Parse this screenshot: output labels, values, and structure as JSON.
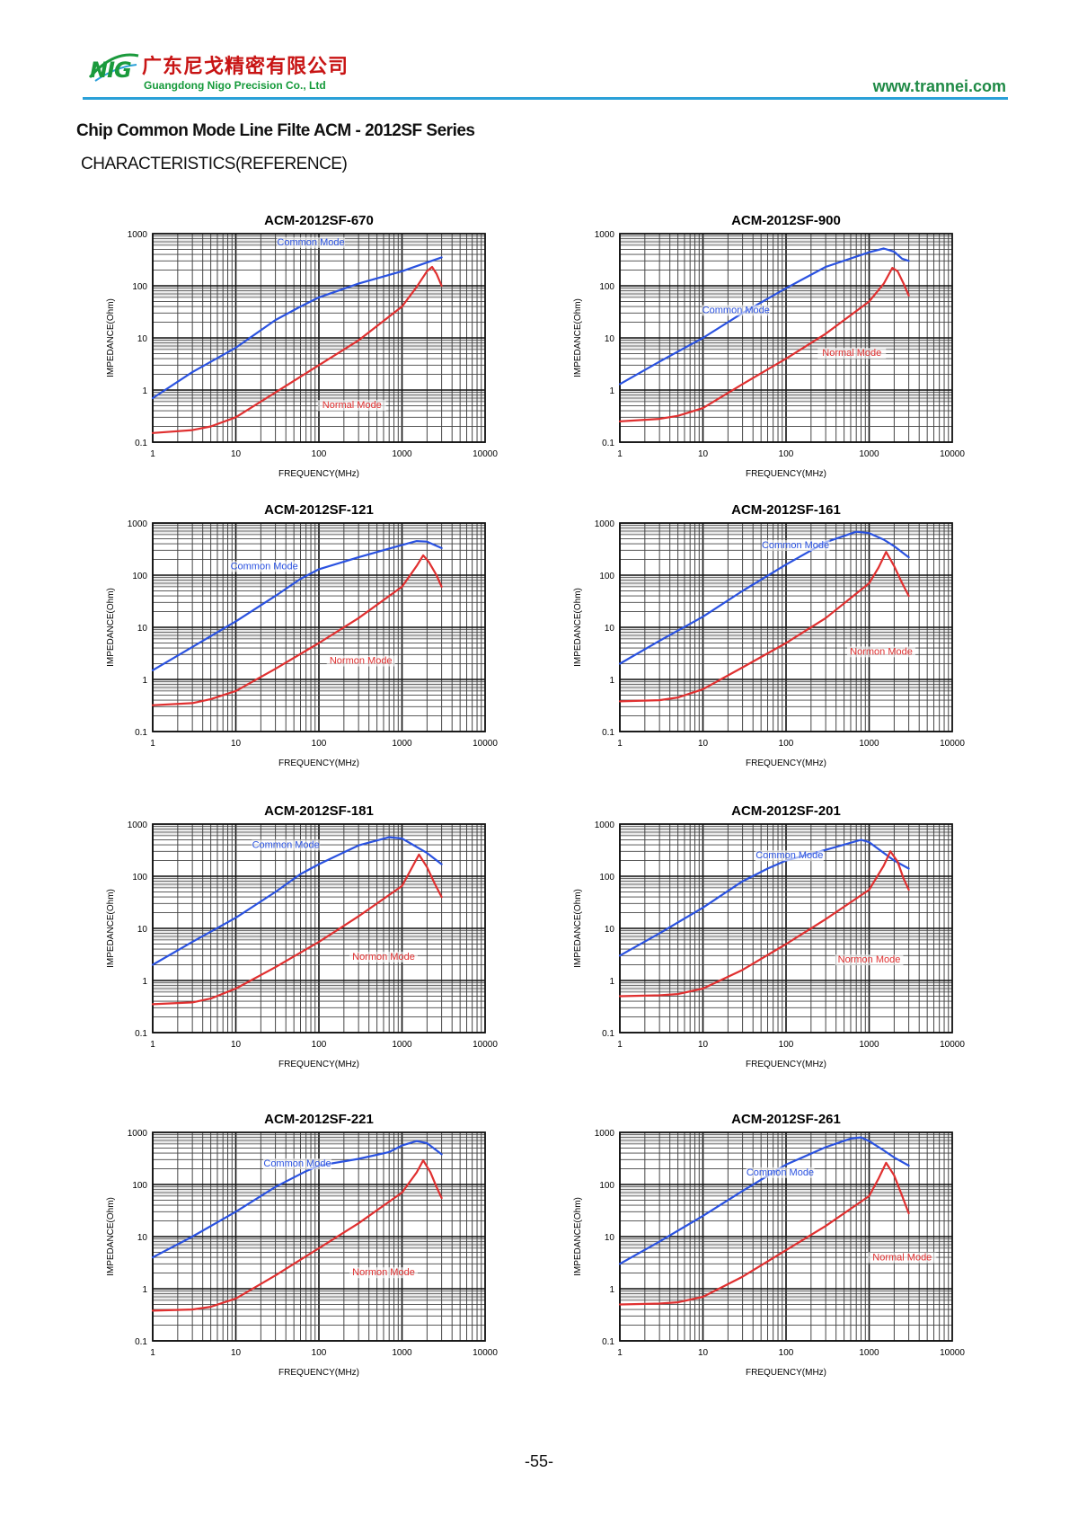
{
  "header": {
    "logo_text": "NIG",
    "company_cn": "广东尼戈精密有限公司",
    "company_en": "Guangdong Nigo Precision Co., Ltd",
    "website": "www.trannei.com",
    "colors": {
      "accent_rule": "#2aa0d8",
      "logo_green": "#1a9a3c",
      "company_red": "#c81414"
    }
  },
  "document": {
    "title": "Chip Common Mode Line Filte ACM - 2012SF Series",
    "subtitle": "CHARACTERISTICS(REFERENCE)",
    "page_number": "-55-"
  },
  "chart_data": [
    {
      "type": "line",
      "title": "ACM-2012SF-670",
      "xlabel": "FREQUENCY(MHz)",
      "ylabel": "IMPEDANCE(Ohm)",
      "xscale": "log",
      "yscale": "log",
      "xlim": [
        1,
        10000
      ],
      "ylim": [
        0.1,
        1000
      ],
      "xticks": [
        1,
        10,
        100,
        1000,
        10000
      ],
      "yticks": [
        0.1,
        1,
        10,
        100,
        1000
      ],
      "xtick_labels": [
        "1",
        "10",
        "100",
        "1000",
        "10000"
      ],
      "ytick_labels": [
        "0.1",
        "1",
        "10",
        "100",
        "1000"
      ],
      "grid": true,
      "series": [
        {
          "name": "Common Mode",
          "color": "#2a52e0",
          "x": [
            1,
            3,
            10,
            30,
            60,
            100,
            300,
            1000,
            2000,
            3000
          ],
          "y": [
            0.7,
            2.2,
            6.5,
            22,
            40,
            60,
            110,
            190,
            280,
            350
          ]
        },
        {
          "name": "Normal Mode",
          "color": "#e03030",
          "x": [
            1,
            3,
            5,
            10,
            30,
            100,
            300,
            1000,
            1500,
            2000,
            2300,
            2600,
            3000
          ],
          "y": [
            0.15,
            0.17,
            0.2,
            0.3,
            0.9,
            3,
            9,
            40,
            95,
            190,
            230,
            170,
            100
          ]
        }
      ],
      "annotations": [
        {
          "text": "Common Mode",
          "x": 80,
          "y": 600,
          "color": "#2a52e0"
        },
        {
          "text": "Normal Mode",
          "x": 250,
          "y": 0.45,
          "color": "#e03030"
        }
      ]
    },
    {
      "type": "line",
      "title": "ACM-2012SF-900",
      "xlabel": "FREQUENCY(MHz)",
      "ylabel": "IMPEDANCE(Ohm)",
      "xscale": "log",
      "yscale": "log",
      "xlim": [
        1,
        10000
      ],
      "ylim": [
        0.1,
        1000
      ],
      "xticks": [
        1,
        10,
        100,
        1000,
        10000
      ],
      "yticks": [
        0.1,
        1,
        10,
        100,
        1000
      ],
      "xtick_labels": [
        "1",
        "10",
        "100",
        "1000",
        "10000"
      ],
      "ytick_labels": [
        "0.1",
        "1",
        "10",
        "100",
        "1000"
      ],
      "grid": true,
      "series": [
        {
          "name": "Common Mode",
          "color": "#2a52e0",
          "x": [
            1,
            3,
            10,
            30,
            100,
            300,
            1000,
            1500,
            2000,
            2500,
            3000
          ],
          "y": [
            1.3,
            3.5,
            10,
            30,
            90,
            230,
            440,
            520,
            450,
            330,
            300
          ]
        },
        {
          "name": "Normal Mode",
          "color": "#e03030",
          "x": [
            1,
            3,
            5,
            10,
            30,
            100,
            300,
            1000,
            1500,
            1900,
            2200,
            2600,
            3000
          ],
          "y": [
            0.25,
            0.28,
            0.32,
            0.45,
            1.3,
            4,
            12,
            50,
            110,
            220,
            190,
            110,
            65
          ]
        }
      ],
      "annotations": [
        {
          "text": "Common Mode",
          "x": 25,
          "y": 30,
          "color": "#2a52e0"
        },
        {
          "text": "Normal Mode",
          "x": 620,
          "y": 4.5,
          "color": "#e03030"
        }
      ]
    },
    {
      "type": "line",
      "title": "ACM-2012SF-121",
      "xlabel": "FREQUENCY(MHz)",
      "ylabel": "IMPEDANCE(Ohm)",
      "xscale": "log",
      "yscale": "log",
      "xlim": [
        1,
        10000
      ],
      "ylim": [
        0.1,
        1000
      ],
      "xticks": [
        1,
        10,
        100,
        1000,
        10000
      ],
      "yticks": [
        0.1,
        1,
        10,
        100,
        1000
      ],
      "xtick_labels": [
        "1",
        "10",
        "100",
        "1000",
        "10000"
      ],
      "ytick_labels": [
        "0.1",
        "1",
        "10",
        "100",
        "1000"
      ],
      "grid": true,
      "series": [
        {
          "name": "Common Mode",
          "color": "#2a52e0",
          "x": [
            1,
            3,
            10,
            30,
            60,
            100,
            300,
            1000,
            1500,
            2000,
            3000
          ],
          "y": [
            1.5,
            4.2,
            13,
            40,
            85,
            130,
            220,
            380,
            450,
            440,
            330
          ]
        },
        {
          "name": "Normal Mode",
          "color": "#e03030",
          "x": [
            1,
            3,
            5,
            10,
            30,
            100,
            300,
            1000,
            1500,
            1800,
            2100,
            2600,
            3000
          ],
          "y": [
            0.32,
            0.35,
            0.42,
            0.6,
            1.6,
            5,
            15,
            60,
            150,
            240,
            180,
            100,
            60
          ]
        }
      ],
      "annotations": [
        {
          "text": "Common Mode",
          "x": 22,
          "y": 130,
          "color": "#2a52e0"
        },
        {
          "text": "Normon Mode",
          "x": 320,
          "y": 2,
          "color": "#e03030"
        }
      ]
    },
    {
      "type": "line",
      "title": "ACM-2012SF-161",
      "xlabel": "FREQUENCY(MHz)",
      "ylabel": "IMPEDANCE(Ohm)",
      "xscale": "log",
      "yscale": "log",
      "xlim": [
        1,
        10000
      ],
      "ylim": [
        0.1,
        1000
      ],
      "xticks": [
        1,
        10,
        100,
        1000,
        10000
      ],
      "yticks": [
        0.1,
        1,
        10,
        100,
        1000
      ],
      "xtick_labels": [
        "1",
        "10",
        "100",
        "1000",
        "10000"
      ],
      "ytick_labels": [
        "0.1",
        "1",
        "10",
        "100",
        "1000"
      ],
      "grid": true,
      "series": [
        {
          "name": "Common Mode",
          "color": "#2a52e0",
          "x": [
            1,
            3,
            10,
            30,
            100,
            300,
            700,
            1000,
            1500,
            2000,
            3000
          ],
          "y": [
            2,
            5.5,
            16,
            50,
            160,
            430,
            680,
            640,
            480,
            360,
            220
          ]
        },
        {
          "name": "Normal Mode",
          "color": "#e03030",
          "x": [
            1,
            3,
            5,
            10,
            30,
            100,
            300,
            1000,
            1300,
            1600,
            2000,
            2500,
            3000
          ],
          "y": [
            0.38,
            0.4,
            0.45,
            0.65,
            1.7,
            5,
            15,
            70,
            140,
            280,
            150,
            70,
            40
          ]
        }
      ],
      "annotations": [
        {
          "text": "Common Mode",
          "x": 130,
          "y": 330,
          "color": "#2a52e0"
        },
        {
          "text": "Normon Mode",
          "x": 1400,
          "y": 3,
          "color": "#e03030"
        }
      ]
    },
    {
      "type": "line",
      "title": "ACM-2012SF-181",
      "xlabel": "FREQUENCY(MHz)",
      "ylabel": "IMPEDANCE(Ohm)",
      "xscale": "log",
      "yscale": "log",
      "xlim": [
        1,
        10000
      ],
      "ylim": [
        0.1,
        1000
      ],
      "xticks": [
        1,
        10,
        100,
        1000,
        10000
      ],
      "yticks": [
        0.1,
        1,
        10,
        100,
        1000
      ],
      "xtick_labels": [
        "1",
        "10",
        "100",
        "1000",
        "10000"
      ],
      "ytick_labels": [
        "0.1",
        "1",
        "10",
        "100",
        "1000"
      ],
      "grid": true,
      "series": [
        {
          "name": "Common Mode",
          "color": "#2a52e0",
          "x": [
            1,
            3,
            10,
            30,
            60,
            100,
            300,
            700,
            1000,
            2000,
            3000
          ],
          "y": [
            2,
            5.5,
            16,
            50,
            110,
            170,
            390,
            560,
            530,
            280,
            170
          ]
        },
        {
          "name": "Normal Mode",
          "color": "#e03030",
          "x": [
            1,
            3,
            5,
            10,
            30,
            100,
            300,
            1000,
            1300,
            1600,
            2000,
            2500,
            3000
          ],
          "y": [
            0.35,
            0.38,
            0.45,
            0.7,
            1.8,
            5.5,
            17,
            65,
            140,
            260,
            150,
            70,
            40
          ]
        }
      ],
      "annotations": [
        {
          "text": "Common Mode",
          "x": 40,
          "y": 350,
          "color": "#2a52e0"
        },
        {
          "text": "Normon Mode",
          "x": 600,
          "y": 2.5,
          "color": "#e03030"
        }
      ]
    },
    {
      "type": "line",
      "title": "ACM-2012SF-201",
      "xlabel": "FREQUENCY(MHz)",
      "ylabel": "IMPEDANCE(Ohm)",
      "xscale": "log",
      "yscale": "log",
      "xlim": [
        1,
        10000
      ],
      "ylim": [
        0.1,
        1000
      ],
      "xticks": [
        1,
        10,
        100,
        1000,
        10000
      ],
      "yticks": [
        0.1,
        1,
        10,
        100,
        1000
      ],
      "xtick_labels": [
        "1",
        "10",
        "100",
        "1000",
        "10000"
      ],
      "ytick_labels": [
        "0.1",
        "1",
        "10",
        "100",
        "1000"
      ],
      "grid": true,
      "series": [
        {
          "name": "Common Mode",
          "color": "#2a52e0",
          "x": [
            1,
            3,
            10,
            30,
            60,
            100,
            300,
            800,
            1000,
            1500,
            2000,
            3000
          ],
          "y": [
            3,
            8,
            25,
            80,
            140,
            200,
            320,
            500,
            450,
            280,
            200,
            140
          ]
        },
        {
          "name": "Normal Mode",
          "color": "#e03030",
          "x": [
            1,
            3,
            5,
            10,
            30,
            100,
            300,
            1000,
            1500,
            1800,
            2200,
            2600,
            3000
          ],
          "y": [
            0.5,
            0.52,
            0.55,
            0.7,
            1.6,
            5,
            15,
            55,
            160,
            300,
            190,
            90,
            55
          ]
        }
      ],
      "annotations": [
        {
          "text": "Common Mode",
          "x": 110,
          "y": 220,
          "color": "#2a52e0"
        },
        {
          "text": "Normon Mode",
          "x": 1000,
          "y": 2.2,
          "color": "#e03030"
        }
      ]
    },
    {
      "type": "line",
      "title": "ACM-2012SF-221",
      "xlabel": "FREQUENCY(MHz)",
      "ylabel": "IMPEDANCE(Ohm)",
      "xscale": "log",
      "yscale": "log",
      "xlim": [
        1,
        10000
      ],
      "ylim": [
        0.1,
        1000
      ],
      "xticks": [
        1,
        10,
        100,
        1000,
        10000
      ],
      "yticks": [
        0.1,
        1,
        10,
        100,
        1000
      ],
      "xtick_labels": [
        "1",
        "10",
        "100",
        "1000",
        "10000"
      ],
      "ytick_labels": [
        "0.1",
        "1",
        "10",
        "100",
        "1000"
      ],
      "grid": true,
      "series": [
        {
          "name": "Common Mode",
          "color": "#2a52e0",
          "x": [
            1,
            3,
            10,
            30,
            70,
            100,
            300,
            700,
            1000,
            1500,
            2000,
            3000
          ],
          "y": [
            4,
            10,
            30,
            90,
            180,
            230,
            310,
            420,
            560,
            680,
            620,
            380
          ]
        },
        {
          "name": "Normal Mode",
          "color": "#e03030",
          "x": [
            1,
            3,
            5,
            10,
            30,
            100,
            300,
            1000,
            1500,
            1800,
            2200,
            2600,
            3000
          ],
          "y": [
            0.38,
            0.4,
            0.45,
            0.65,
            1.8,
            6,
            18,
            70,
            170,
            290,
            170,
            90,
            55
          ]
        }
      ],
      "annotations": [
        {
          "text": "Common Mode",
          "x": 55,
          "y": 220,
          "color": "#2a52e0"
        },
        {
          "text": "Normon Mode",
          "x": 600,
          "y": 1.8,
          "color": "#e03030"
        }
      ]
    },
    {
      "type": "line",
      "title": "ACM-2012SF-261",
      "xlabel": "FREQUENCY(MHz)",
      "ylabel": "IMPEDANCE(Ohm)",
      "xscale": "log",
      "yscale": "log",
      "xlim": [
        1,
        10000
      ],
      "ylim": [
        0.1,
        1000
      ],
      "xticks": [
        1,
        10,
        100,
        1000,
        10000
      ],
      "yticks": [
        0.1,
        1,
        10,
        100,
        1000
      ],
      "xtick_labels": [
        "1",
        "10",
        "100",
        "1000",
        "10000"
      ],
      "ytick_labels": [
        "0.1",
        "1",
        "10",
        "100",
        "1000"
      ],
      "grid": true,
      "series": [
        {
          "name": "Common Mode",
          "color": "#2a52e0",
          "x": [
            1,
            3,
            10,
            30,
            100,
            300,
            600,
            800,
            1000,
            1500,
            2000,
            3000
          ],
          "y": [
            3,
            8,
            25,
            75,
            240,
            520,
            760,
            800,
            680,
            450,
            330,
            230
          ]
        },
        {
          "name": "Normal Mode",
          "color": "#e03030",
          "x": [
            1,
            3,
            5,
            10,
            30,
            100,
            300,
            1000,
            1300,
            1600,
            2000,
            2500,
            3000
          ],
          "y": [
            0.5,
            0.52,
            0.55,
            0.7,
            1.7,
            5.5,
            16,
            60,
            130,
            260,
            150,
            60,
            28
          ]
        }
      ],
      "annotations": [
        {
          "text": "Common Mode",
          "x": 85,
          "y": 150,
          "color": "#2a52e0"
        },
        {
          "text": "Normal Mode",
          "x": 2500,
          "y": 3.5,
          "color": "#e03030"
        }
      ]
    }
  ]
}
